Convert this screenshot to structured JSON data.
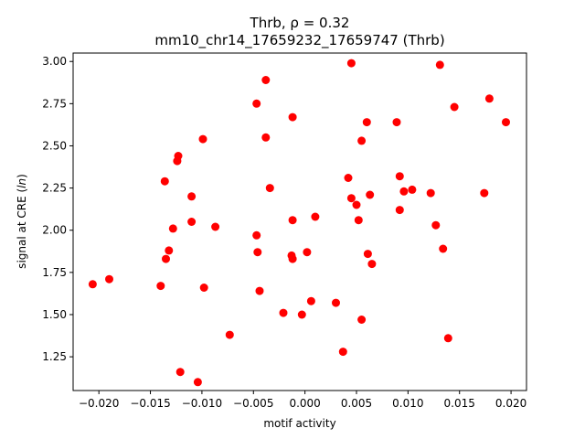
{
  "chart_data": {
    "type": "scatter",
    "title_line1": "Thrb, ρ = 0.32",
    "title_line2": "mm10_chr14_17659232_17659747 (Thrb)",
    "xlabel": "motif activity",
    "ylabel": "signal at CRE (ln)",
    "xlim": [
      -0.0225,
      0.0215
    ],
    "ylim": [
      1.05,
      3.05
    ],
    "xticks": [
      -0.02,
      -0.015,
      -0.01,
      -0.005,
      0.0,
      0.005,
      0.01,
      0.015,
      0.02
    ],
    "xtick_labels": [
      "−0.020",
      "−0.015",
      "−0.010",
      "−0.005",
      "0.000",
      "0.005",
      "0.010",
      "0.015",
      "0.020"
    ],
    "yticks": [
      1.25,
      1.5,
      1.75,
      2.0,
      2.25,
      2.5,
      2.75,
      3.0
    ],
    "ytick_labels": [
      "1.25",
      "1.50",
      "1.75",
      "2.00",
      "2.25",
      "2.50",
      "2.75",
      "3.00"
    ],
    "grid": false,
    "marker_color": "#ff0000",
    "points": [
      {
        "x": -0.0206,
        "y": 1.68
      },
      {
        "x": -0.019,
        "y": 1.71
      },
      {
        "x": -0.014,
        "y": 1.67
      },
      {
        "x": -0.0136,
        "y": 2.29
      },
      {
        "x": -0.0135,
        "y": 1.83
      },
      {
        "x": -0.0132,
        "y": 1.88
      },
      {
        "x": -0.0128,
        "y": 2.01
      },
      {
        "x": -0.0124,
        "y": 2.41
      },
      {
        "x": -0.0123,
        "y": 2.44
      },
      {
        "x": -0.0121,
        "y": 1.16
      },
      {
        "x": -0.011,
        "y": 2.2
      },
      {
        "x": -0.011,
        "y": 2.05
      },
      {
        "x": -0.0104,
        "y": 1.1
      },
      {
        "x": -0.0099,
        "y": 2.54
      },
      {
        "x": -0.0098,
        "y": 1.66
      },
      {
        "x": -0.0087,
        "y": 2.02
      },
      {
        "x": -0.0073,
        "y": 1.38
      },
      {
        "x": -0.0047,
        "y": 2.75
      },
      {
        "x": -0.0047,
        "y": 1.97
      },
      {
        "x": -0.0046,
        "y": 1.87
      },
      {
        "x": -0.0044,
        "y": 1.64
      },
      {
        "x": -0.0038,
        "y": 2.89
      },
      {
        "x": -0.0038,
        "y": 2.55
      },
      {
        "x": -0.0034,
        "y": 2.25
      },
      {
        "x": -0.0021,
        "y": 1.51
      },
      {
        "x": -0.0012,
        "y": 2.67
      },
      {
        "x": -0.0012,
        "y": 2.06
      },
      {
        "x": -0.0013,
        "y": 1.85
      },
      {
        "x": -0.0012,
        "y": 1.83
      },
      {
        "x": -0.0003,
        "y": 1.5
      },
      {
        "x": 0.0002,
        "y": 1.87
      },
      {
        "x": 0.0006,
        "y": 1.58
      },
      {
        "x": 0.001,
        "y": 2.08
      },
      {
        "x": 0.003,
        "y": 1.57
      },
      {
        "x": 0.0037,
        "y": 1.28
      },
      {
        "x": 0.0042,
        "y": 2.31
      },
      {
        "x": 0.0045,
        "y": 2.99
      },
      {
        "x": 0.0045,
        "y": 2.19
      },
      {
        "x": 0.005,
        "y": 2.15
      },
      {
        "x": 0.0052,
        "y": 2.06
      },
      {
        "x": 0.0055,
        "y": 1.47
      },
      {
        "x": 0.0055,
        "y": 2.53
      },
      {
        "x": 0.006,
        "y": 2.64
      },
      {
        "x": 0.0061,
        "y": 1.86
      },
      {
        "x": 0.0063,
        "y": 2.21
      },
      {
        "x": 0.0065,
        "y": 1.8
      },
      {
        "x": 0.0089,
        "y": 2.64
      },
      {
        "x": 0.0092,
        "y": 2.32
      },
      {
        "x": 0.0092,
        "y": 2.12
      },
      {
        "x": 0.0096,
        "y": 2.23
      },
      {
        "x": 0.0104,
        "y": 2.24
      },
      {
        "x": 0.0122,
        "y": 2.22
      },
      {
        "x": 0.0127,
        "y": 2.03
      },
      {
        "x": 0.0131,
        "y": 2.98
      },
      {
        "x": 0.0134,
        "y": 1.89
      },
      {
        "x": 0.0139,
        "y": 1.36
      },
      {
        "x": 0.0145,
        "y": 2.73
      },
      {
        "x": 0.0174,
        "y": 2.22
      },
      {
        "x": 0.0179,
        "y": 2.78
      },
      {
        "x": 0.0195,
        "y": 2.64
      }
    ]
  }
}
